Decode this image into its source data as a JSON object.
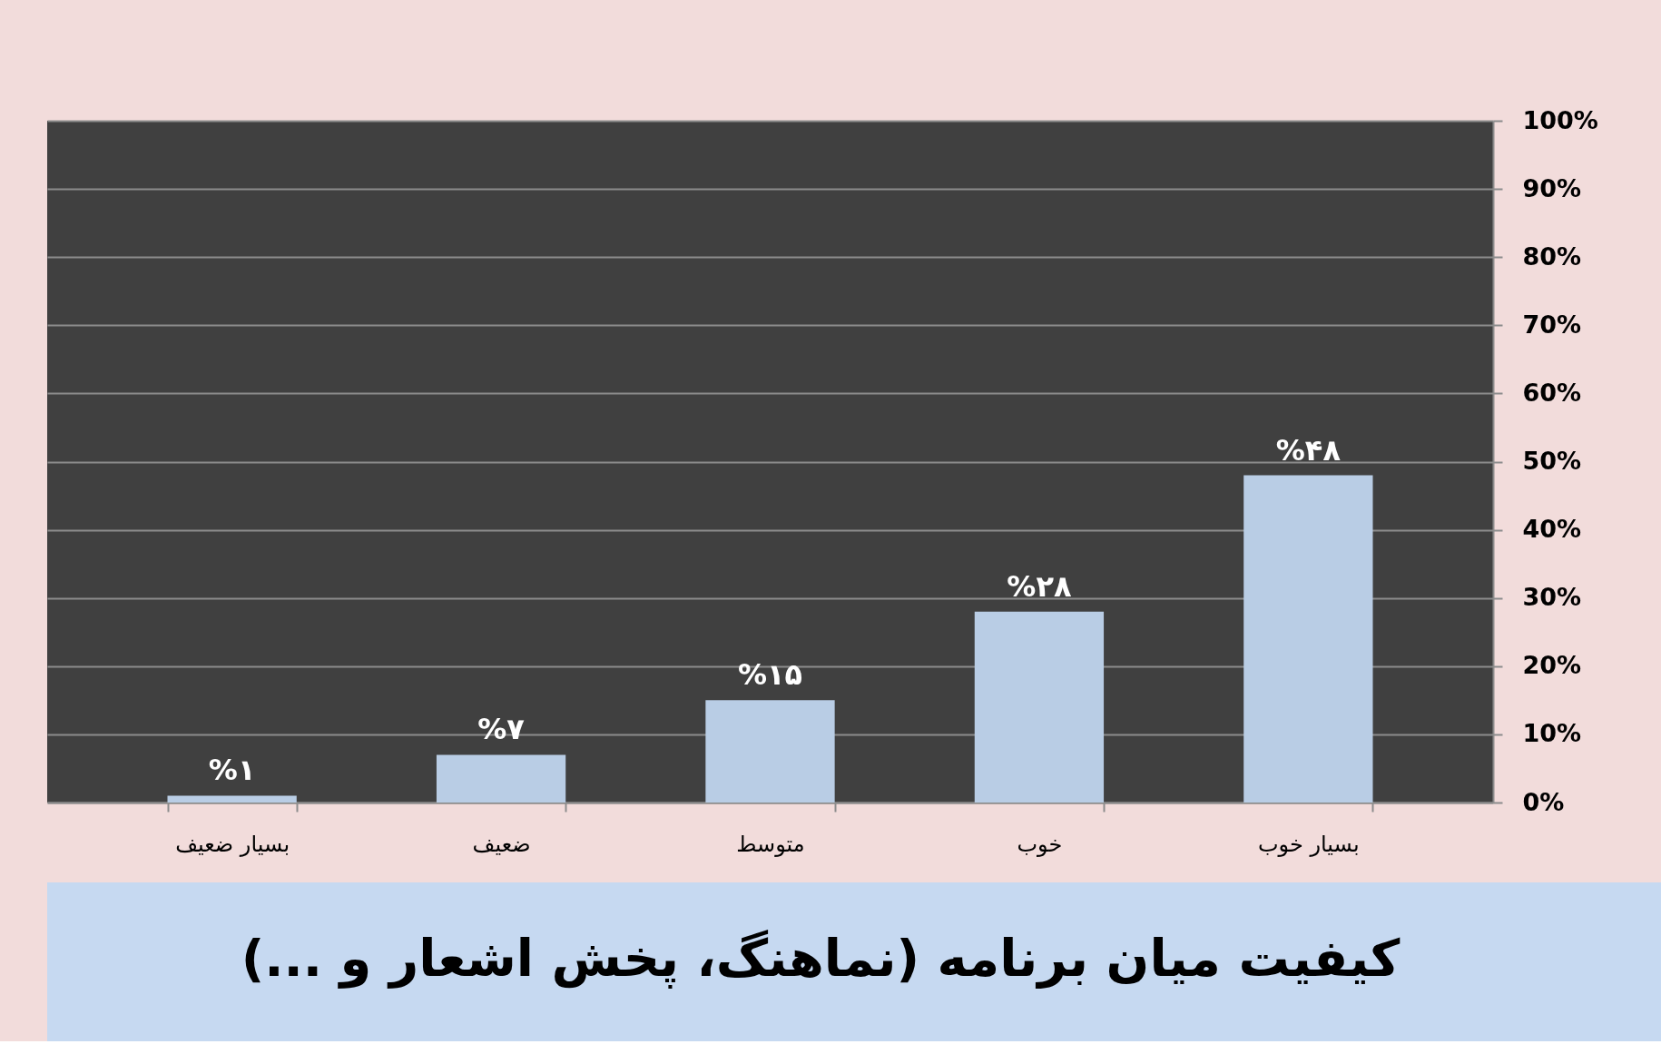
{
  "chart_data": {
    "type": "bar",
    "title": "کیفیت میان برنامه (نماهنگ، پخش اشعار و ...)",
    "categories": [
      "بسیار ضعیف",
      "ضعیف",
      "متوسط",
      "خوب",
      "بسیار خوب"
    ],
    "values": [
      1,
      7,
      15,
      28,
      48
    ],
    "color": "#b9cde5",
    "value_labels": [
      "%۱",
      "%۷",
      "%۱۵",
      "%۲۸",
      "%۴۸"
    ],
    "ylim": [
      0,
      100
    ],
    "yticks": [
      {
        "value": 0,
        "label": "0%"
      },
      {
        "value": 10,
        "label": "10%"
      },
      {
        "value": 20,
        "label": "20%"
      },
      {
        "value": 30,
        "label": "30%"
      },
      {
        "value": 40,
        "label": "40%"
      },
      {
        "value": 50,
        "label": "50%"
      },
      {
        "value": 60,
        "label": "60%"
      },
      {
        "value": 70,
        "label": "70%"
      },
      {
        "value": 80,
        "label": "80%"
      },
      {
        "value": 90,
        "label": "90%"
      },
      {
        "value": 100,
        "label": "100%"
      }
    ],
    "grid": "y"
  }
}
